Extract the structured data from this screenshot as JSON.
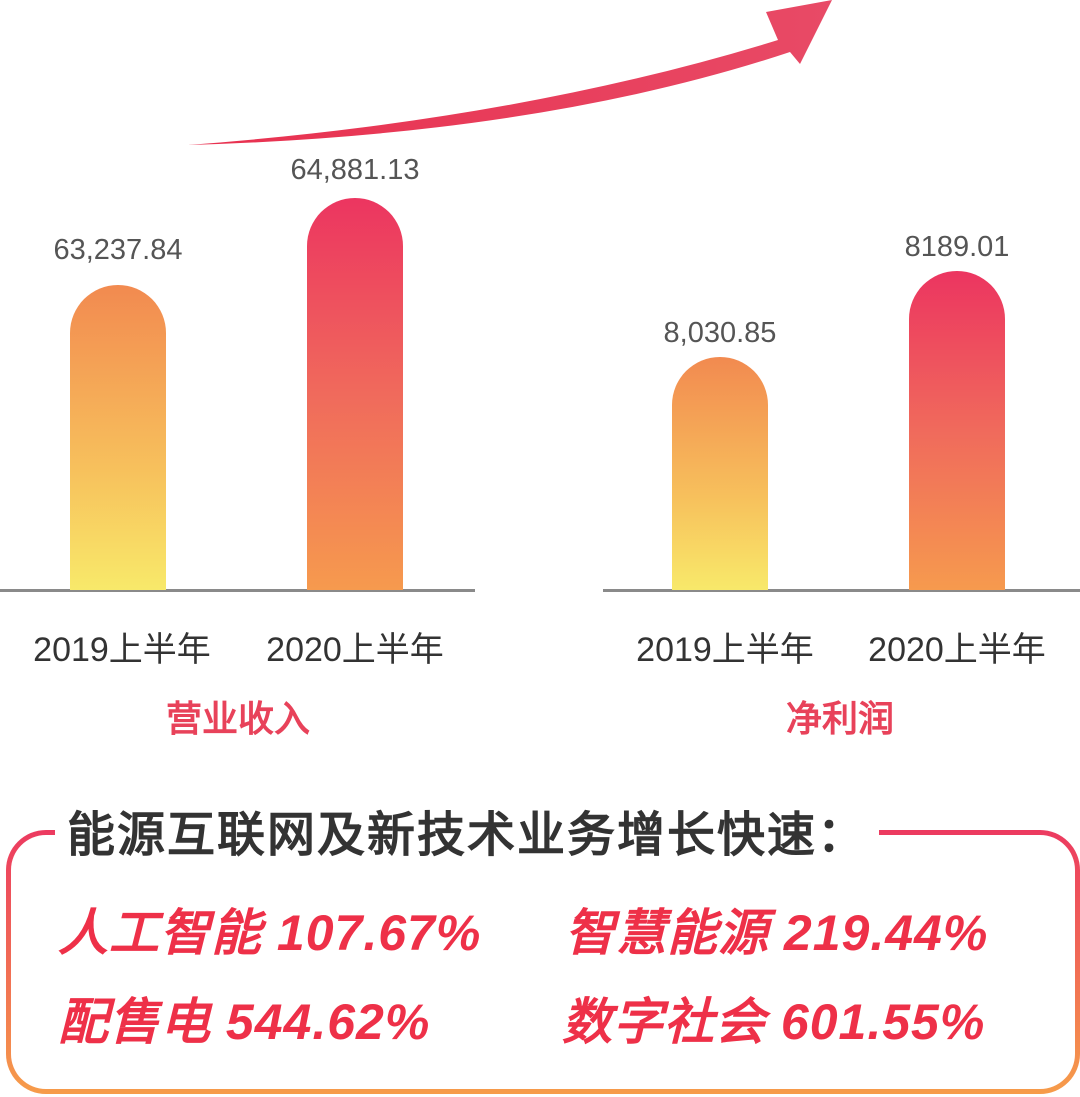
{
  "chart_data": [
    {
      "type": "bar",
      "title": "营业收入",
      "categories": [
        "2019上半年",
        "2020上半年"
      ],
      "values": [
        63237.84,
        64881.13
      ],
      "value_labels": [
        "63,237.84",
        "64,881.13"
      ],
      "colors": [
        "#f8e96a",
        "#ec3560"
      ]
    },
    {
      "type": "bar",
      "title": "净利润",
      "categories": [
        "2019上半年",
        "2020上半年"
      ],
      "values": [
        8030.85,
        8189.01
      ],
      "value_labels": [
        "8,030.85",
        "8189.01"
      ],
      "colors": [
        "#f8e96a",
        "#ec3560"
      ]
    }
  ],
  "growth": {
    "heading": "能源互联网及新技术业务增长快速：",
    "items": [
      {
        "label": "人工智能",
        "value": "107.67%"
      },
      {
        "label": "智慧能源",
        "value": "219.44%"
      },
      {
        "label": "配售电",
        "value": "544.62%"
      },
      {
        "label": "数字社会",
        "value": "601.55%"
      }
    ]
  },
  "colors": {
    "accent": "#ee3048",
    "title": "#e8425a",
    "heading": "#333333"
  }
}
